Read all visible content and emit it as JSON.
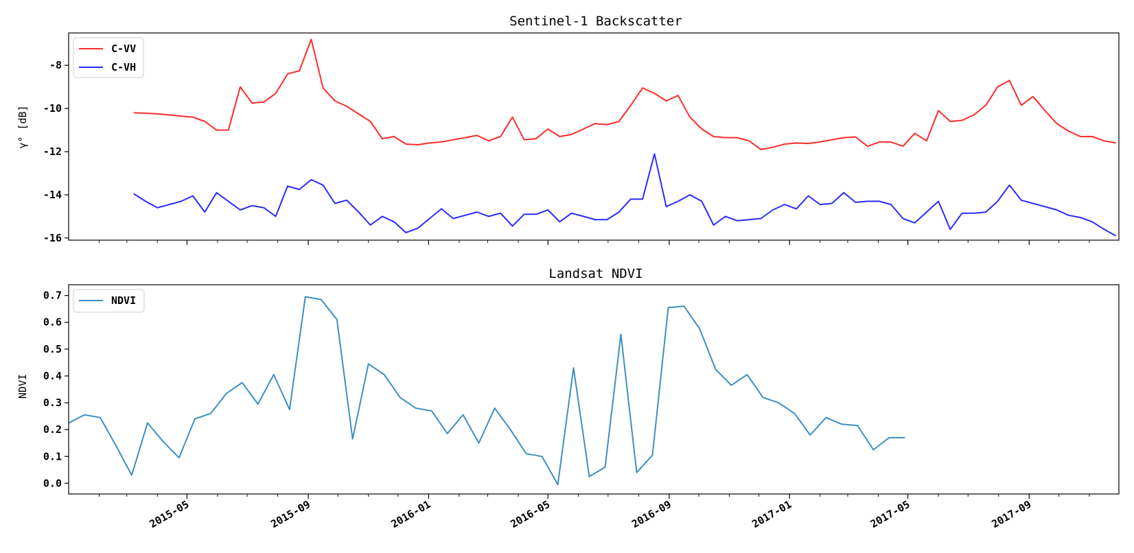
{
  "chart_data": [
    {
      "type": "line",
      "title": "Sentinel-1 Backscatter",
      "ylabel": "γ° [dB]",
      "xlabel": "",
      "xlim": [
        "2015-01-01",
        "2017-12-01"
      ],
      "ylim": [
        -16.1,
        -6.5
      ],
      "yticks": [
        -16,
        -14,
        -12,
        -10,
        -8
      ],
      "ytick_labels": [
        "-16",
        "-14",
        "-12",
        "-10",
        "-8"
      ],
      "x_tick_labels_visible": false,
      "legend": "top-left",
      "grid": false,
      "series": [
        {
          "name": "C-VV",
          "color": "#ff2a2a",
          "x": [
            "2015-03-08",
            "2015-03-20",
            "2015-04-01",
            "2015-04-13",
            "2015-04-25",
            "2015-05-07",
            "2015-05-19",
            "2015-05-31",
            "2015-06-12",
            "2015-06-24",
            "2015-07-06",
            "2015-07-18",
            "2015-07-30",
            "2015-08-11",
            "2015-08-23",
            "2015-09-04",
            "2015-09-16",
            "2015-09-28",
            "2015-10-10",
            "2015-10-22",
            "2015-11-03",
            "2015-11-15",
            "2015-11-27",
            "2015-12-09",
            "2015-12-21",
            "2016-01-02",
            "2016-01-14",
            "2016-01-26",
            "2016-02-07",
            "2016-02-19",
            "2016-03-02",
            "2016-03-14",
            "2016-03-26",
            "2016-04-07",
            "2016-04-19",
            "2016-05-01",
            "2016-05-13",
            "2016-05-25",
            "2016-06-06",
            "2016-06-18",
            "2016-06-30",
            "2016-07-12",
            "2016-07-24",
            "2016-08-05",
            "2016-08-17",
            "2016-08-29",
            "2016-09-10",
            "2016-09-22",
            "2016-10-04",
            "2016-10-16",
            "2016-10-28",
            "2016-11-09",
            "2016-11-21",
            "2016-12-03",
            "2016-12-15",
            "2016-12-27",
            "2017-01-08",
            "2017-01-20",
            "2017-02-01",
            "2017-02-13",
            "2017-02-25",
            "2017-03-09",
            "2017-03-21",
            "2017-04-02",
            "2017-04-14",
            "2017-04-26",
            "2017-05-08",
            "2017-05-20",
            "2017-06-01",
            "2017-06-13",
            "2017-06-25",
            "2017-07-07",
            "2017-07-19",
            "2017-07-31",
            "2017-08-12",
            "2017-08-24",
            "2017-09-05",
            "2017-09-17",
            "2017-09-29",
            "2017-10-11",
            "2017-10-23",
            "2017-11-04",
            "2017-11-16",
            "2017-11-28"
          ],
          "values": [
            -10.2,
            -10.22,
            -10.25,
            -10.3,
            -10.35,
            -10.4,
            -10.6,
            -11.0,
            -11.0,
            -9.0,
            -9.75,
            -9.7,
            -9.3,
            -8.4,
            -8.25,
            -6.8,
            -9.05,
            -9.65,
            -9.9,
            -10.25,
            -10.6,
            -11.4,
            -11.3,
            -11.65,
            -11.68,
            -11.6,
            -11.55,
            -11.45,
            -11.35,
            -11.25,
            -11.5,
            -11.3,
            -10.4,
            -11.45,
            -11.4,
            -10.95,
            -11.3,
            -11.2,
            -10.95,
            -10.7,
            -10.75,
            -10.6,
            -9.85,
            -9.05,
            -9.3,
            -9.65,
            -9.4,
            -10.4,
            -10.95,
            -11.3,
            -11.35,
            -11.35,
            -11.5,
            -11.9,
            -11.8,
            -11.65,
            -11.6,
            -11.62,
            -11.55,
            -11.45,
            -11.35,
            -11.32,
            -11.75,
            -11.55,
            -11.55,
            -11.75,
            -11.15,
            -11.5,
            -10.1,
            -10.6,
            -10.55,
            -10.3,
            -9.85,
            -9.0,
            -8.7,
            -9.85,
            -9.45,
            -10.1,
            -10.7,
            -11.05,
            -11.3,
            -11.3,
            -11.5,
            -11.6
          ]
        },
        {
          "name": "C-VH",
          "color": "#2a2aff",
          "x": [
            "2015-03-08",
            "2015-03-20",
            "2015-04-01",
            "2015-04-13",
            "2015-04-25",
            "2015-05-07",
            "2015-05-19",
            "2015-05-31",
            "2015-06-12",
            "2015-06-24",
            "2015-07-06",
            "2015-07-18",
            "2015-07-30",
            "2015-08-11",
            "2015-08-23",
            "2015-09-04",
            "2015-09-16",
            "2015-09-28",
            "2015-10-10",
            "2015-10-22",
            "2015-11-03",
            "2015-11-15",
            "2015-11-27",
            "2015-12-09",
            "2015-12-21",
            "2016-01-02",
            "2016-01-14",
            "2016-01-26",
            "2016-02-07",
            "2016-02-19",
            "2016-03-02",
            "2016-03-14",
            "2016-03-26",
            "2016-04-07",
            "2016-04-19",
            "2016-05-01",
            "2016-05-13",
            "2016-05-25",
            "2016-06-06",
            "2016-06-18",
            "2016-06-30",
            "2016-07-12",
            "2016-07-24",
            "2016-08-05",
            "2016-08-17",
            "2016-08-29",
            "2016-09-10",
            "2016-09-22",
            "2016-10-04",
            "2016-10-16",
            "2016-10-28",
            "2016-11-09",
            "2016-11-21",
            "2016-12-03",
            "2016-12-15",
            "2016-12-27",
            "2017-01-08",
            "2017-01-20",
            "2017-02-01",
            "2017-02-13",
            "2017-02-25",
            "2017-03-09",
            "2017-03-21",
            "2017-04-02",
            "2017-04-14",
            "2017-04-26",
            "2017-05-08",
            "2017-05-20",
            "2017-06-01",
            "2017-06-13",
            "2017-06-25",
            "2017-07-07",
            "2017-07-19",
            "2017-07-31",
            "2017-08-12",
            "2017-08-24",
            "2017-09-05",
            "2017-09-17",
            "2017-09-29",
            "2017-10-11",
            "2017-10-23",
            "2017-11-04",
            "2017-11-16",
            "2017-11-28"
          ],
          "values": [
            -13.95,
            -14.3,
            -14.6,
            -14.45,
            -14.3,
            -14.05,
            -14.8,
            -13.9,
            -14.3,
            -14.7,
            -14.5,
            -14.6,
            -15.0,
            -13.6,
            -13.75,
            -13.3,
            -13.55,
            -14.4,
            -14.25,
            -14.8,
            -15.4,
            -15.0,
            -15.25,
            -15.75,
            -15.55,
            -15.1,
            -14.65,
            -15.1,
            -14.95,
            -14.8,
            -15.0,
            -14.85,
            -15.45,
            -14.9,
            -14.9,
            -14.7,
            -15.25,
            -14.85,
            -15.0,
            -15.15,
            -15.15,
            -14.8,
            -14.2,
            -14.2,
            -12.1,
            -14.55,
            -14.3,
            -14.0,
            -14.3,
            -15.4,
            -15.0,
            -15.2,
            -15.15,
            -15.1,
            -14.7,
            -14.45,
            -14.65,
            -14.05,
            -14.45,
            -14.4,
            -13.9,
            -14.35,
            -14.3,
            -14.3,
            -14.45,
            -15.1,
            -15.3,
            -14.8,
            -14.3,
            -15.6,
            -14.85,
            -14.85,
            -14.8,
            -14.3,
            -13.55,
            -14.25,
            -14.4,
            -14.55,
            -14.7,
            -14.95,
            -15.05,
            -15.25,
            -15.6,
            -15.9
          ]
        }
      ]
    },
    {
      "type": "line",
      "title": "Landsat NDVI",
      "ylabel": "NDVI",
      "xlabel": "",
      "xlim": [
        "2015-01-01",
        "2017-12-01"
      ],
      "ylim": [
        -0.04,
        0.74
      ],
      "yticks": [
        0.0,
        0.1,
        0.2,
        0.3,
        0.4,
        0.5,
        0.6,
        0.7
      ],
      "ytick_labels": [
        "0.0",
        "0.1",
        "0.2",
        "0.3",
        "0.4",
        "0.5",
        "0.6",
        "0.7"
      ],
      "x_tick_labels": [
        "2015-05",
        "2015-09",
        "2016-01",
        "2016-05",
        "2016-09",
        "2017-01",
        "2017-05",
        "2017-09"
      ],
      "legend": "top-left",
      "grid": false,
      "series": [
        {
          "name": "NDVI",
          "color": "#3a8fc4",
          "x": [
            "2015-01-01",
            "2015-01-17",
            "2015-02-02",
            "2015-02-18",
            "2015-03-06",
            "2015-03-22",
            "2015-04-07",
            "2015-04-23",
            "2015-05-09",
            "2015-05-25",
            "2015-06-10",
            "2015-06-26",
            "2015-07-12",
            "2015-07-28",
            "2015-08-13",
            "2015-08-29",
            "2015-09-14",
            "2015-09-30",
            "2015-10-16",
            "2015-11-01",
            "2015-11-17",
            "2015-12-03",
            "2015-12-19",
            "2016-01-04",
            "2016-01-20",
            "2016-02-05",
            "2016-02-21",
            "2016-03-08",
            "2016-03-24",
            "2016-04-09",
            "2016-04-25",
            "2016-05-11",
            "2016-05-27",
            "2016-06-12",
            "2016-06-28",
            "2016-07-14",
            "2016-07-30",
            "2016-08-15",
            "2016-08-31",
            "2016-09-16",
            "2016-10-02",
            "2016-10-18",
            "2016-11-03",
            "2016-11-19",
            "2016-12-05",
            "2016-12-21",
            "2017-01-06",
            "2017-01-22",
            "2017-02-07",
            "2017-02-23",
            "2017-03-11",
            "2017-03-27",
            "2017-04-12",
            "2017-04-28"
          ],
          "values": [
            0.225,
            0.255,
            0.245,
            0.14,
            0.03,
            0.225,
            0.155,
            0.095,
            0.24,
            0.26,
            0.335,
            0.375,
            0.295,
            0.405,
            0.275,
            0.695,
            0.685,
            0.61,
            0.165,
            0.445,
            0.405,
            0.32,
            0.28,
            0.27,
            0.185,
            0.255,
            0.15,
            0.28,
            0.2,
            0.11,
            0.1,
            -0.005,
            0.43,
            0.025,
            0.06,
            0.555,
            0.04,
            0.105,
            0.655,
            0.66,
            0.575,
            0.425,
            0.365,
            0.405,
            0.32,
            0.3,
            0.26,
            0.18,
            0.245,
            0.22,
            0.215,
            0.125,
            0.17,
            0.17
          ]
        }
      ]
    }
  ]
}
